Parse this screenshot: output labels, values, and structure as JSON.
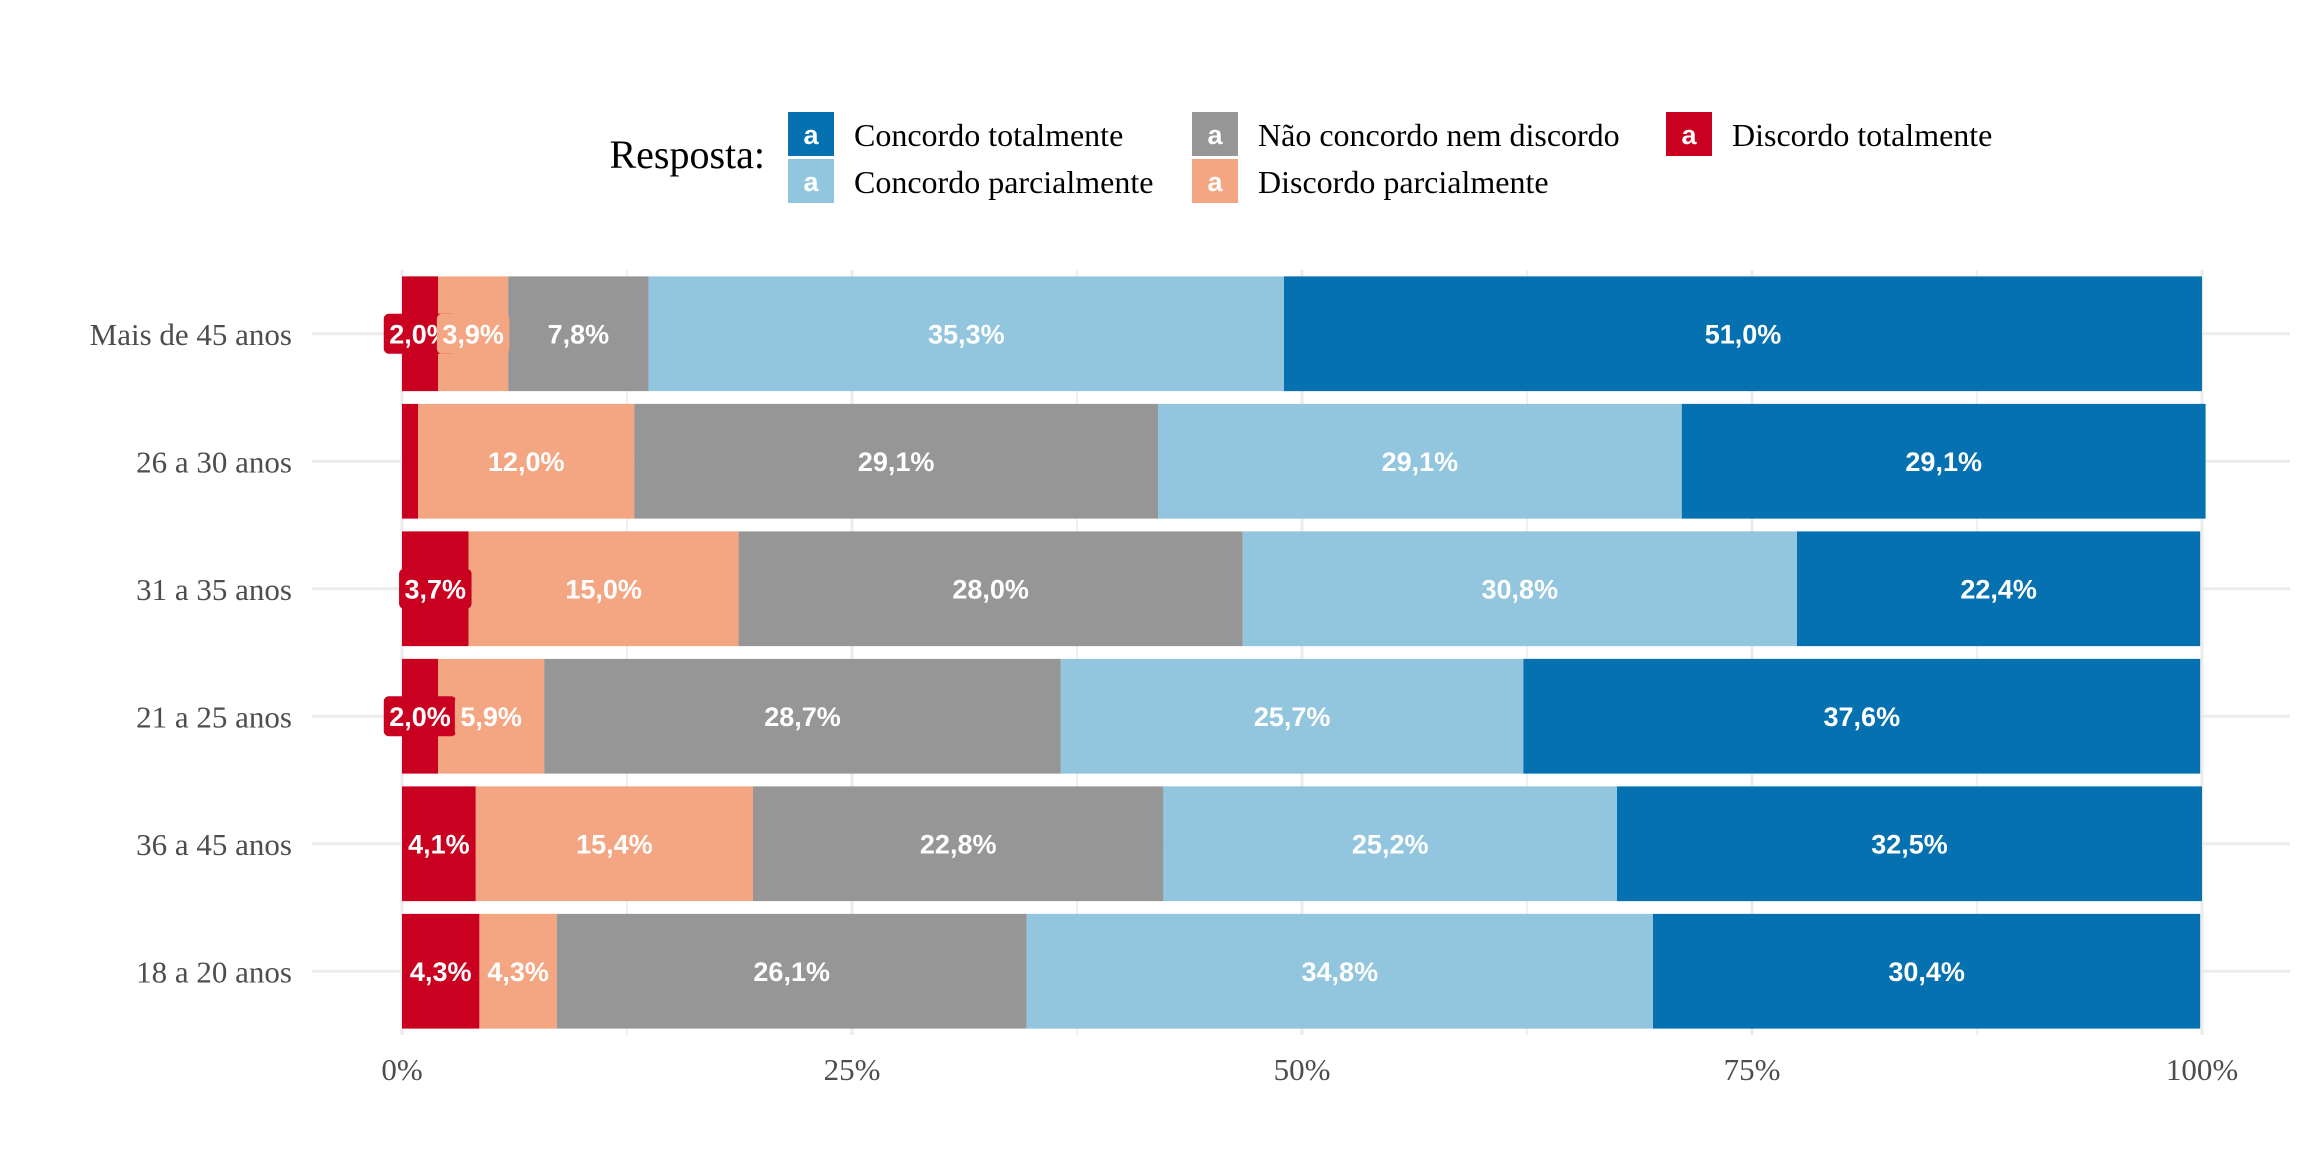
{
  "chart_data": {
    "type": "bar",
    "orientation": "horizontal",
    "stacked": true,
    "legend_title": "Resposta:",
    "legend_position": "top",
    "x_tick_labels": [
      "0%",
      "25%",
      "50%",
      "75%",
      "100%"
    ],
    "xlim": [
      0,
      100
    ],
    "grid": true,
    "categories": [
      "Mais de 45 anos",
      "26 a 30 anos",
      "31 a 35 anos",
      "21 a 25 anos",
      "36 a 45 anos",
      "18 a 20 anos"
    ],
    "series": [
      {
        "name": "Discordo totalmente",
        "color": "#ca0020",
        "values": [
          2.0,
          0.9,
          3.7,
          2.0,
          4.1,
          4.3
        ],
        "labels": [
          "2,0%",
          "",
          "3,7%",
          "2,0%",
          "4,1%",
          "4,3%"
        ]
      },
      {
        "name": "Discordo parcialmente",
        "color": "#f4a582",
        "values": [
          3.9,
          12.0,
          15.0,
          5.9,
          15.4,
          4.3
        ],
        "labels": [
          "3,9%",
          "12,0%",
          "15,0%",
          "5,9%",
          "15,4%",
          "4,3%"
        ]
      },
      {
        "name": "Não concordo nem discordo",
        "color": "#969696",
        "values": [
          7.8,
          29.1,
          28.0,
          28.7,
          22.8,
          26.1
        ],
        "labels": [
          "7,8%",
          "29,1%",
          "28,0%",
          "28,7%",
          "22,8%",
          "26,1%"
        ]
      },
      {
        "name": "Concordo parcialmente",
        "color": "#92c5de",
        "values": [
          35.3,
          29.1,
          30.8,
          25.7,
          25.2,
          34.8
        ],
        "labels": [
          "35,3%",
          "29,1%",
          "30,8%",
          "25,7%",
          "25,2%",
          "34,8%"
        ]
      },
      {
        "name": "Concordo totalmente",
        "color": "#0571b0",
        "values": [
          51.0,
          29.1,
          22.4,
          37.6,
          32.5,
          30.4
        ],
        "labels": [
          "51,0%",
          "29,1%",
          "22,4%",
          "37,6%",
          "32,5%",
          "30,4%"
        ]
      }
    ],
    "legend_order": [
      "Concordo totalmente",
      "Concordo parcialmente",
      "Não concordo nem discordo",
      "Discordo parcialmente",
      "Discordo totalmente"
    ],
    "legend_key_glyph": "a"
  }
}
